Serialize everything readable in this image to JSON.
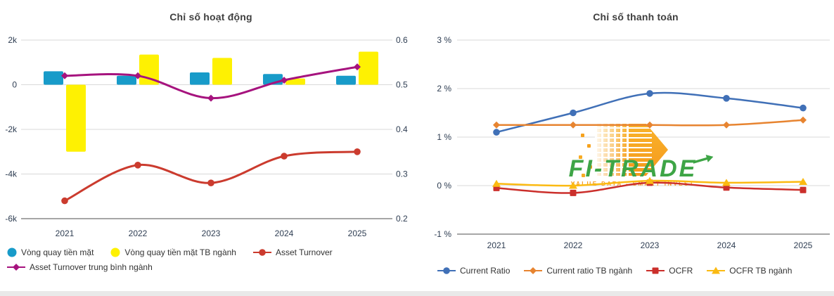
{
  "page": {
    "background": "#ffffff",
    "bottom_bar_color": "#e9e9e9"
  },
  "watermark": {
    "title": "FI-TRADE",
    "subtitle": "VALUE DATA - SMART INVEST",
    "title_color": "#3ea546",
    "subtitle_color": "#f59b23",
    "arrow_color": "#f7a31f"
  },
  "chart_data": [
    {
      "type": "combo-bar-line",
      "title": "Chỉ số hoạt động",
      "categories": [
        "2021",
        "2022",
        "2023",
        "2024",
        "2025"
      ],
      "grid": true,
      "legend_position": "bottom-left",
      "axes": {
        "left": {
          "tick_values": [
            2000,
            0,
            -2000,
            -4000,
            -6000
          ],
          "tick_labels": [
            "2k",
            "0",
            "-2k",
            "-4k",
            "-6k"
          ]
        },
        "right": {
          "tick_values": [
            0.6,
            0.5,
            0.4,
            0.3,
            0.2
          ],
          "tick_labels": [
            "0.6",
            "0.5",
            "0.4",
            "0.3",
            "0.2"
          ]
        }
      },
      "series": [
        {
          "name": "Vòng quay tiền mặt",
          "type": "bar",
          "axis": "left",
          "color": "#189bc9",
          "values": [
            600,
            400,
            550,
            480,
            400
          ]
        },
        {
          "name": "Vòng quay tiền mặt TB ngành",
          "type": "bar",
          "axis": "left",
          "color": "#fef102",
          "values": [
            -3000,
            1350,
            1200,
            280,
            1480
          ]
        },
        {
          "name": "Asset Turnover",
          "type": "line",
          "axis": "right",
          "color": "#cb3b2e",
          "marker": "circle",
          "values": [
            0.24,
            0.32,
            0.28,
            0.34,
            0.35
          ]
        },
        {
          "name": "Asset Turnover trung bình ngành",
          "type": "line",
          "axis": "right",
          "color": "#a6137e",
          "marker": "diamond",
          "values": [
            0.52,
            0.52,
            0.47,
            0.51,
            0.54
          ]
        }
      ]
    },
    {
      "type": "line",
      "title": "Chỉ số thanh toán",
      "categories": [
        "2021",
        "2022",
        "2023",
        "2024",
        "2025"
      ],
      "grid": true,
      "legend_position": "bottom",
      "value_unit": "%",
      "axes": {
        "left": {
          "tick_values": [
            3,
            2,
            1,
            0,
            -1
          ],
          "tick_labels": [
            "3 %",
            "2 %",
            "1 %",
            "0 %",
            "-1 %"
          ]
        }
      },
      "series": [
        {
          "name": "Current Ratio",
          "type": "line",
          "axis": "left",
          "color": "#4070b7",
          "marker": "circle",
          "values": [
            1.1,
            1.5,
            1.9,
            1.8,
            1.6
          ]
        },
        {
          "name": "Current ratio TB ngành",
          "type": "line",
          "axis": "left",
          "color": "#e78430",
          "marker": "diamond",
          "values": [
            1.25,
            1.25,
            1.25,
            1.25,
            1.35
          ]
        },
        {
          "name": "OCFR",
          "type": "line",
          "axis": "left",
          "color": "#cb2f2b",
          "marker": "square",
          "values": [
            -0.05,
            -0.15,
            0.06,
            -0.04,
            -0.09
          ]
        },
        {
          "name": "OCFR TB ngành",
          "type": "line",
          "axis": "left",
          "color": "#fbba12",
          "marker": "triangle",
          "values": [
            0.04,
            0.0,
            0.1,
            0.06,
            0.08
          ]
        }
      ]
    }
  ]
}
